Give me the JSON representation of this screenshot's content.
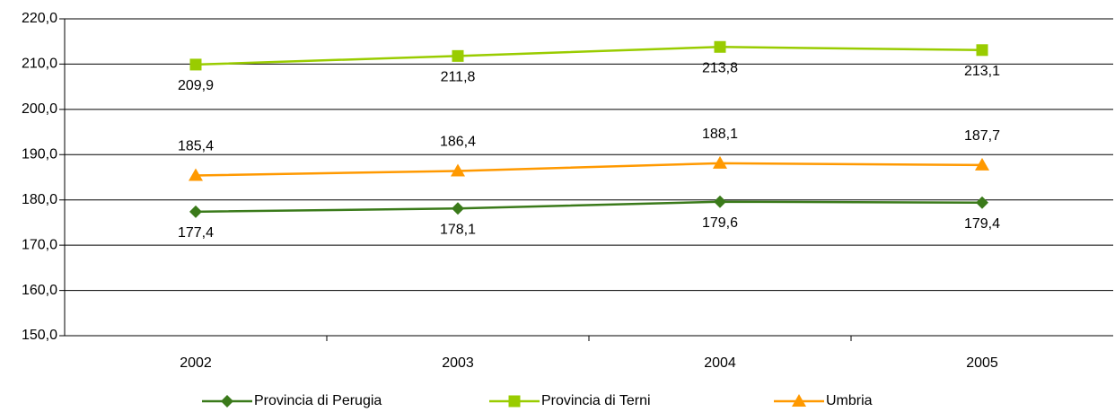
{
  "chart_data": {
    "type": "line",
    "categories": [
      "2002",
      "2003",
      "2004",
      "2005"
    ],
    "series": [
      {
        "name": "Provincia di Perugia",
        "color": "#3a7a1a",
        "marker": "diamond",
        "values": [
          177.4,
          178.1,
          179.6,
          179.4
        ],
        "value_labels": [
          "177,4",
          "178,1",
          "179,6",
          "179,4"
        ]
      },
      {
        "name": "Provincia di Terni",
        "color": "#99cc00",
        "marker": "square",
        "values": [
          209.9,
          211.8,
          213.8,
          213.1
        ],
        "value_labels": [
          "209,9",
          "211,8",
          "213,8",
          "213,1"
        ]
      },
      {
        "name": "Umbria",
        "color": "#ff9900",
        "marker": "triangle",
        "values": [
          185.4,
          186.4,
          188.1,
          187.7
        ],
        "value_labels": [
          "185,4",
          "186,4",
          "188,1",
          "187,7"
        ]
      }
    ],
    "ylim": [
      150,
      220
    ],
    "yticks": [
      {
        "value": 150,
        "label": "150,0"
      },
      {
        "value": 160,
        "label": "160,0"
      },
      {
        "value": 170,
        "label": "170,0"
      },
      {
        "value": 180,
        "label": "180,0"
      },
      {
        "value": 190,
        "label": "190,0"
      },
      {
        "value": 200,
        "label": "200,0"
      },
      {
        "value": 210,
        "label": "210,0"
      },
      {
        "value": 220,
        "label": "220,0"
      }
    ],
    "grid": true,
    "legend": "bottom"
  }
}
